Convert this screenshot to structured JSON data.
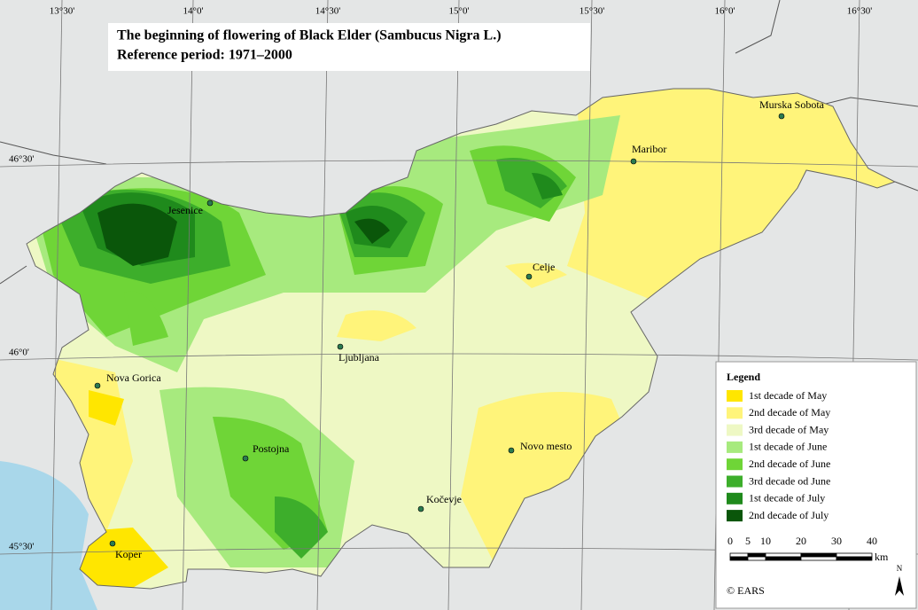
{
  "title": [
    "The beginning of flowering of Black Elder (Sambucus Nigra L.)",
    "Reference period: 1971–2000"
  ],
  "longitudes": [
    "13°30'",
    "14°0'",
    "14°30'",
    "15°0'",
    "15°30'",
    "16°0'",
    "16°30'"
  ],
  "latitudes": [
    "46°30'",
    "46°0'",
    "45°30'"
  ],
  "cities": [
    "Murska Sobota",
    "Maribor",
    "Jesenice",
    "Celje",
    "Ljubljana",
    "Nova Gorica",
    "Novo mesto",
    "Postojna",
    "Kočevje",
    "Koper"
  ],
  "legend": {
    "title": "Legend",
    "items": [
      {
        "label": "1st decade of May",
        "color": "#ffe600"
      },
      {
        "label": "2nd decade of May",
        "color": "#fff47a"
      },
      {
        "label": "3rd decade of May",
        "color": "#eef8c4"
      },
      {
        "label": "1st decade of June",
        "color": "#a7ea7e"
      },
      {
        "label": "2nd decade of June",
        "color": "#6fd537"
      },
      {
        "label": "3rd decade od June",
        "color": "#3dae2b"
      },
      {
        "label": "1st decade of July",
        "color": "#1f8a1c"
      },
      {
        "label": "2nd decade of July",
        "color": "#0a560a"
      }
    ]
  },
  "scale": {
    "ticks": [
      0,
      5,
      10,
      20,
      30,
      40
    ],
    "unit": "km"
  },
  "credit": "© EARS",
  "north": "N"
}
